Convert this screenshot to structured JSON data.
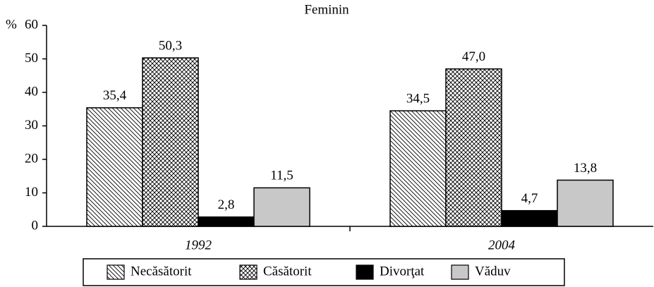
{
  "chart_data": {
    "type": "bar",
    "title": "Feminin",
    "y_label": "%",
    "categories": [
      "1992",
      "2004"
    ],
    "series": [
      {
        "name": "Necăsătorit",
        "color": "#000000",
        "pattern": "diagonal",
        "values": [
          35.4,
          34.5
        ],
        "value_labels": [
          "35,4",
          "34,5"
        ]
      },
      {
        "name": "Căsătorit",
        "color": "#000000",
        "pattern": "crosshatch",
        "values": [
          50.3,
          47.0
        ],
        "value_labels": [
          "50,3",
          "47,0"
        ]
      },
      {
        "name": "Divorţat",
        "color": "#000000",
        "pattern": "solid",
        "values": [
          2.8,
          4.7
        ],
        "value_labels": [
          "2,8",
          "4,7"
        ]
      },
      {
        "name": "Văduv",
        "color": "#c8c8c8",
        "pattern": "solid",
        "values": [
          11.5,
          13.8
        ],
        "value_labels": [
          "11,5",
          "13,8"
        ]
      }
    ],
    "ylim": [
      0,
      60
    ],
    "yticks": [
      0,
      10,
      20,
      30,
      40,
      50,
      60
    ],
    "grid": false,
    "legend": "bottom"
  }
}
